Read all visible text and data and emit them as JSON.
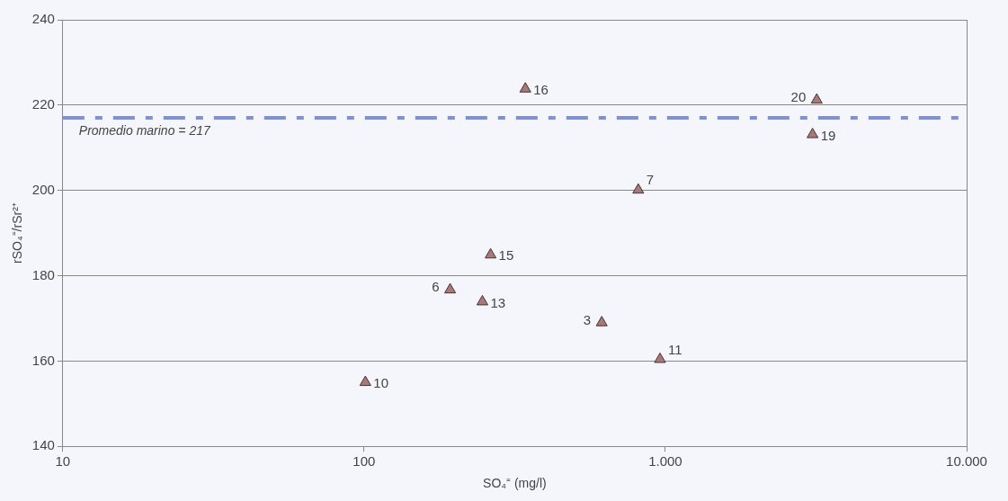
{
  "chart_data": {
    "type": "scatter",
    "xlabel": "SO₄⁼ (mg/l)",
    "ylabel": "rSO₄⁼/rSr²⁺",
    "x": [
      101,
      193,
      247,
      263,
      343,
      615,
      813,
      960,
      3080,
      3180
    ],
    "values": [
      155,
      176.7,
      173.9,
      184.9,
      223.8,
      169,
      200.1,
      160.4,
      213.1,
      221.2
    ],
    "color": "#a57a78",
    "marker": "triangle",
    "log": "x",
    "grid": "y",
    "xlim": [
      10,
      10000
    ],
    "xticks": [
      10,
      100,
      {
        "value": 1000,
        "label": "1.000"
      },
      {
        "value": 10000,
        "label": "10.000"
      }
    ],
    "ylim": [
      140,
      240
    ],
    "yticks": [
      140,
      160,
      180,
      200,
      220,
      240
    ],
    "ref_lines": [
      {
        "axis": "y",
        "value": 217,
        "label": "Promedio marino = 217",
        "color": "#7f90d6",
        "line_style": "dashdot"
      }
    ],
    "annotations": [
      {
        "text": "10",
        "x": 101,
        "y": 155
      },
      {
        "text": "6",
        "x": 193,
        "y": 176.7
      },
      {
        "text": "13",
        "x": 247,
        "y": 173.9
      },
      {
        "text": "15",
        "x": 263,
        "y": 184.9
      },
      {
        "text": "16",
        "x": 343,
        "y": 223.8
      },
      {
        "text": "3",
        "x": 615,
        "y": 169
      },
      {
        "text": "7",
        "x": 813,
        "y": 200.1
      },
      {
        "text": "11",
        "x": 960,
        "y": 160.4
      },
      {
        "text": "19",
        "x": 3080,
        "y": 213.1
      },
      {
        "text": "20",
        "x": 3180,
        "y": 221.2
      }
    ]
  }
}
